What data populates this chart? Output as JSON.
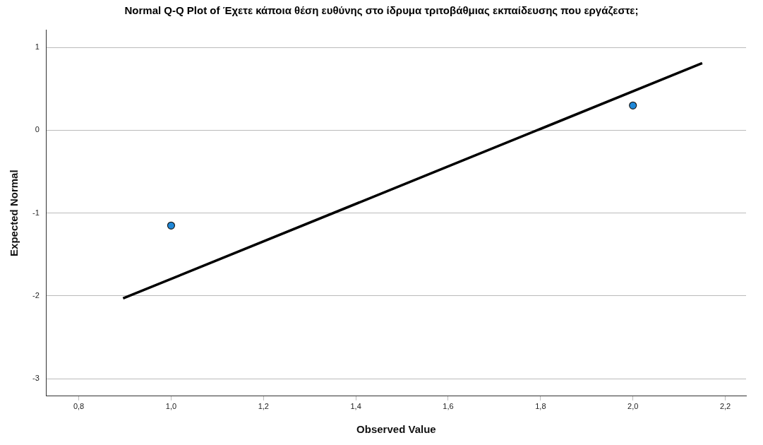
{
  "chart_data": {
    "type": "scatter",
    "title": "Normal Q-Q Plot of Έχετε κάποια θέση ευθύνης στο ίδρυμα τριτοβάθμιας εκπαίδευσης που εργάζεστε;",
    "xlabel": "Observed Value",
    "ylabel": "Expected Normal",
    "series": [
      {
        "type": "scatter",
        "color": "#1f88d8",
        "x": [
          1.0,
          2.0
        ],
        "values": [
          -1.15,
          0.3
        ],
        "marker": "circle"
      },
      {
        "type": "line",
        "color": "#000000",
        "x": [
          0.896,
          2.15
        ],
        "values": [
          -2.03,
          0.81
        ],
        "marker": "none"
      }
    ],
    "xlim": [
      0.73,
      2.245
    ],
    "xticks": [
      {
        "value": 0.8,
        "label": "0,8"
      },
      {
        "value": 1.0,
        "label": "1,0"
      },
      {
        "value": 1.2,
        "label": "1,2"
      },
      {
        "value": 1.4,
        "label": "1,4"
      },
      {
        "value": 1.6,
        "label": "1,6"
      },
      {
        "value": 1.8,
        "label": "1,8"
      },
      {
        "value": 2.0,
        "label": "2,0"
      },
      {
        "value": 2.2,
        "label": "2,2"
      }
    ],
    "ylim": [
      -3.21,
      1.21
    ],
    "yticks": [
      -3,
      -2,
      -1,
      0,
      1
    ],
    "grid": "y",
    "legend": false
  }
}
